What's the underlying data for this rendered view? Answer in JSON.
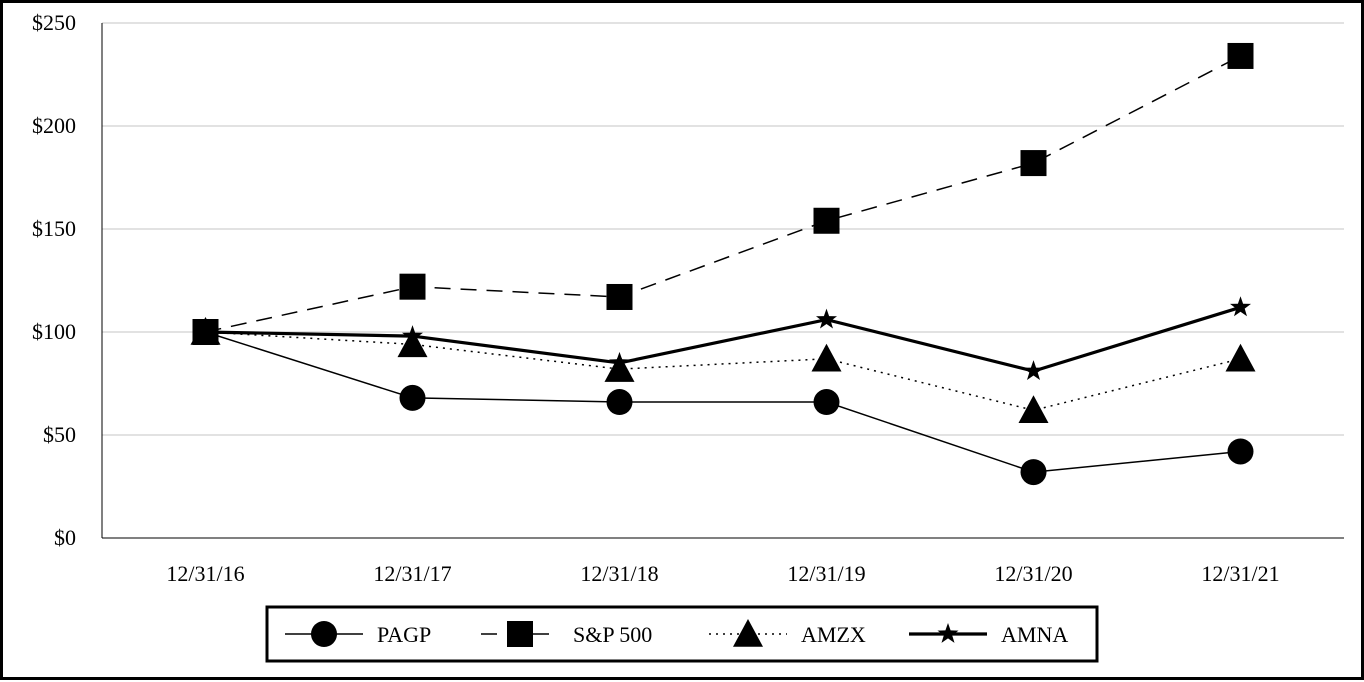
{
  "chart_data": {
    "type": "line",
    "title": "",
    "xlabel": "",
    "ylabel": "",
    "categories": [
      "12/31/16",
      "12/31/17",
      "12/31/18",
      "12/31/19",
      "12/31/20",
      "12/31/21"
    ],
    "ylim": [
      0,
      250
    ],
    "yticks": [
      0,
      50,
      100,
      150,
      200,
      250
    ],
    "ytick_labels": [
      "$0",
      "$50",
      "$100",
      "$150",
      "$200",
      "$250"
    ],
    "grid": "horizontal",
    "legend_position": "bottom",
    "series": [
      {
        "name": "PAGP",
        "values": [
          100,
          68,
          66,
          66,
          32,
          42
        ],
        "marker": "circle",
        "line_style": "solid",
        "line_weight": "thin"
      },
      {
        "name": "S&P 500",
        "values": [
          100,
          122,
          117,
          154,
          182,
          234
        ],
        "marker": "square",
        "line_style": "dashed",
        "line_weight": "thin"
      },
      {
        "name": "AMZX",
        "values": [
          100,
          94,
          82,
          87,
          62,
          87
        ],
        "marker": "triangle",
        "line_style": "dotted",
        "line_weight": "thin"
      },
      {
        "name": "AMNA",
        "values": [
          100,
          98,
          85,
          106,
          81,
          112
        ],
        "marker": "star",
        "line_style": "solid",
        "line_weight": "bold"
      }
    ]
  },
  "colors": {
    "series": "#000000",
    "grid": "#d9d9d9",
    "axis": "#000000",
    "background": "#ffffff"
  }
}
